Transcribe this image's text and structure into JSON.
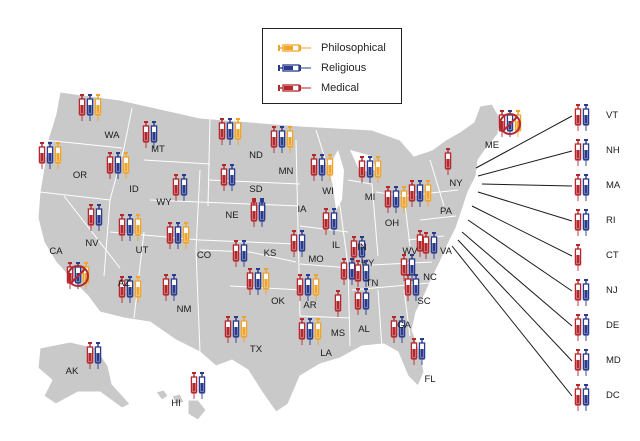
{
  "legend": {
    "philosophical": "Philosophical",
    "religious": "Religious",
    "medical": "Medical"
  },
  "colors": {
    "philosophical": "#f2a32a",
    "religious": "#2a3a8c",
    "medical": "#b3272d",
    "land": "#c9c9c9",
    "border": "#ffffff",
    "no_exemption": "#b3272d"
  },
  "icon": "syringe-icon",
  "states": [
    {
      "abbr": "WA",
      "types": [
        "medical",
        "religious",
        "philosophical"
      ]
    },
    {
      "abbr": "OR",
      "types": [
        "medical",
        "religious",
        "philosophical"
      ]
    },
    {
      "abbr": "CA",
      "types": [],
      "no_exemption": true
    },
    {
      "abbr": "NV",
      "types": [
        "medical",
        "religious"
      ]
    },
    {
      "abbr": "ID",
      "types": [
        "medical",
        "religious",
        "philosophical"
      ]
    },
    {
      "abbr": "MT",
      "types": [
        "medical",
        "religious"
      ]
    },
    {
      "abbr": "WY",
      "types": [
        "medical",
        "religious"
      ]
    },
    {
      "abbr": "UT",
      "types": [
        "medical",
        "religious",
        "philosophical"
      ]
    },
    {
      "abbr": "AZ",
      "types": [
        "medical",
        "religious",
        "philosophical"
      ]
    },
    {
      "abbr": "CO",
      "types": [
        "medical",
        "religious",
        "philosophical"
      ]
    },
    {
      "abbr": "NM",
      "types": [
        "medical",
        "religious"
      ]
    },
    {
      "abbr": "ND",
      "types": [
        "medical",
        "religious",
        "philosophical"
      ]
    },
    {
      "abbr": "SD",
      "types": [
        "medical",
        "religious"
      ]
    },
    {
      "abbr": "NE",
      "types": [
        "medical",
        "religious"
      ]
    },
    {
      "abbr": "KS",
      "types": [
        "medical",
        "religious"
      ]
    },
    {
      "abbr": "OK",
      "types": [
        "medical",
        "religious",
        "philosophical"
      ]
    },
    {
      "abbr": "TX",
      "types": [
        "medical",
        "religious",
        "philosophical"
      ]
    },
    {
      "abbr": "MN",
      "types": [
        "medical",
        "religious",
        "philosophical"
      ]
    },
    {
      "abbr": "IA",
      "types": [
        "medical",
        "religious"
      ]
    },
    {
      "abbr": "MO",
      "types": [
        "medical",
        "religious"
      ]
    },
    {
      "abbr": "AR",
      "types": [
        "medical",
        "religious",
        "philosophical"
      ]
    },
    {
      "abbr": "LA",
      "types": [
        "medical",
        "religious",
        "philosophical"
      ]
    },
    {
      "abbr": "WI",
      "types": [
        "medical",
        "religious",
        "philosophical"
      ]
    },
    {
      "abbr": "IL",
      "types": [
        "medical",
        "religious"
      ]
    },
    {
      "abbr": "MI",
      "types": [
        "medical",
        "religious",
        "philosophical"
      ]
    },
    {
      "abbr": "IN",
      "types": [
        "medical",
        "religious"
      ]
    },
    {
      "abbr": "OH",
      "types": [
        "medical",
        "religious",
        "philosophical"
      ]
    },
    {
      "abbr": "KY",
      "types": [
        "medical",
        "religious"
      ]
    },
    {
      "abbr": "TN",
      "types": [
        "medical",
        "religious"
      ]
    },
    {
      "abbr": "MS",
      "types": [
        "medical"
      ]
    },
    {
      "abbr": "AL",
      "types": [
        "medical",
        "religious"
      ]
    },
    {
      "abbr": "GA",
      "types": [
        "medical",
        "religious"
      ]
    },
    {
      "abbr": "FL",
      "types": [
        "medical",
        "religious"
      ]
    },
    {
      "abbr": "SC",
      "types": [
        "medical",
        "religious"
      ]
    },
    {
      "abbr": "NC",
      "types": [
        "medical",
        "religious"
      ]
    },
    {
      "abbr": "VA",
      "types": [
        "medical",
        "religious"
      ]
    },
    {
      "abbr": "WV",
      "types": [
        "medical"
      ]
    },
    {
      "abbr": "PA",
      "types": [
        "medical",
        "religious",
        "philosophical"
      ]
    },
    {
      "abbr": "NY",
      "types": [
        "medical"
      ]
    },
    {
      "abbr": "ME",
      "types": [],
      "no_exemption": true
    },
    {
      "abbr": "AK",
      "types": [
        "medical",
        "religious"
      ]
    },
    {
      "abbr": "HI",
      "types": [
        "medical",
        "religious"
      ]
    }
  ],
  "side_states": [
    {
      "abbr": "VT",
      "types": [
        "medical",
        "religious"
      ]
    },
    {
      "abbr": "NH",
      "types": [
        "medical",
        "religious"
      ]
    },
    {
      "abbr": "MA",
      "types": [
        "medical",
        "religious"
      ]
    },
    {
      "abbr": "RI",
      "types": [
        "medical",
        "religious"
      ]
    },
    {
      "abbr": "CT",
      "types": [
        "medical"
      ]
    },
    {
      "abbr": "NJ",
      "types": [
        "medical",
        "religious"
      ]
    },
    {
      "abbr": "DE",
      "types": [
        "medical",
        "religious"
      ]
    },
    {
      "abbr": "MD",
      "types": [
        "medical",
        "religious"
      ]
    },
    {
      "abbr": "DC",
      "types": [
        "medical",
        "religious"
      ]
    }
  ]
}
